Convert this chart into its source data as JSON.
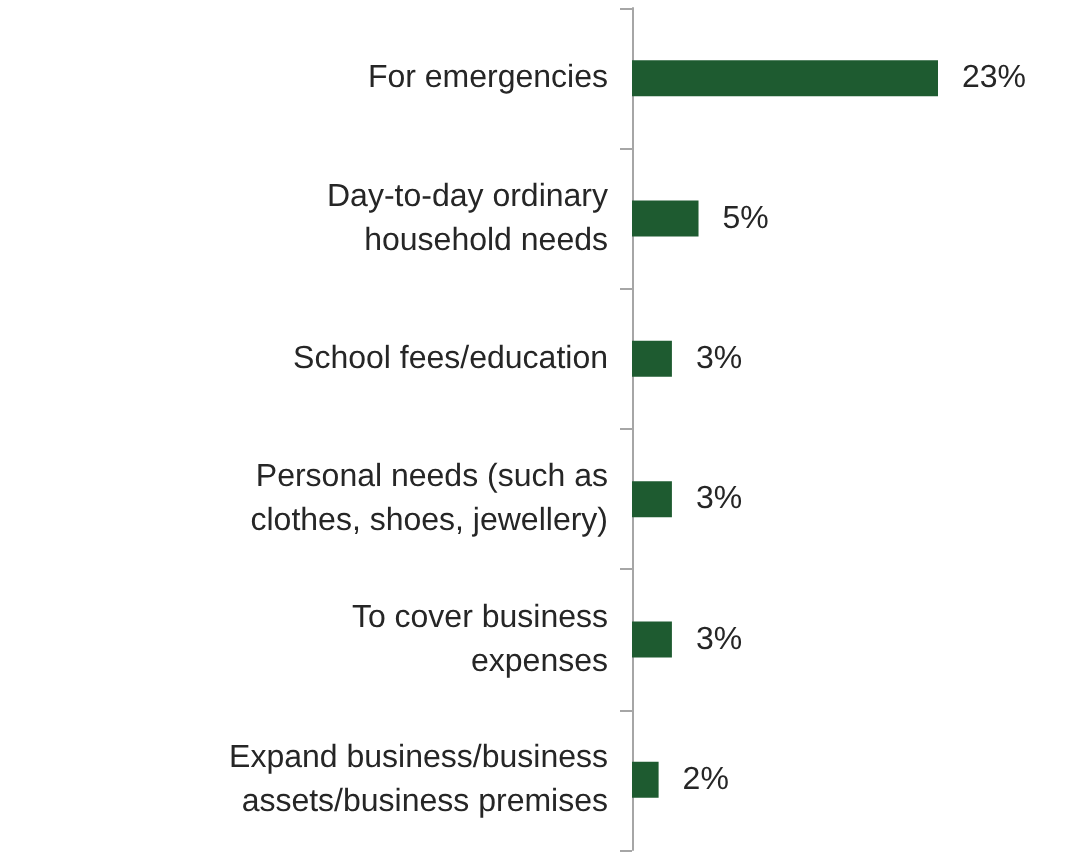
{
  "chart_data": {
    "type": "bar",
    "orientation": "horizontal",
    "categories": [
      "For emergencies",
      "Day-to-day ordinary\nhousehold needs",
      "School fees/education",
      "Personal needs (such as\nclothes, shoes, jewellery)",
      "To cover business\nexpenses",
      "Expand business/business\nassets/business premises"
    ],
    "values": [
      23,
      5,
      3,
      3,
      3,
      2
    ],
    "value_labels": [
      "23%",
      "5%",
      "3%",
      "3%",
      "3%",
      "2%"
    ],
    "color": "#1e5b30"
  }
}
